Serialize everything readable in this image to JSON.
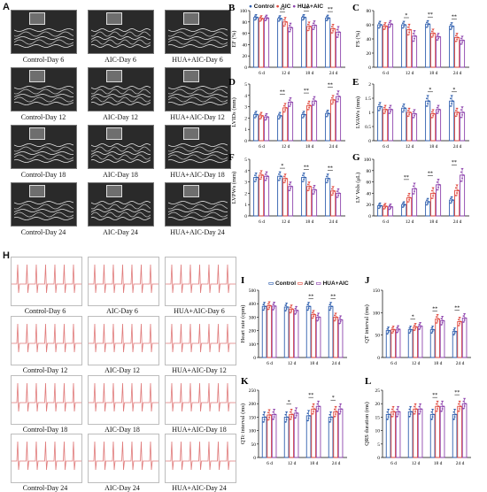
{
  "panel_letters": [
    "A",
    "B",
    "C",
    "D",
    "E",
    "F",
    "G",
    "H",
    "I",
    "J",
    "K",
    "L"
  ],
  "echo_labels": [
    "Control-Day 6",
    "AIC-Day 6",
    "HUA+AIC-Day 6",
    "Control-Day 12",
    "AIC-Day 12",
    "HUA+AIC-Day 12",
    "Control-Day 18",
    "AIC-Day 18",
    "HUA+AIC-Day 18",
    "Control-Day 24",
    "AIC-Day 24",
    "HUA+AIC-Day 24"
  ],
  "ecg_labels": [
    "Control-Day 6",
    "AIC-Day 6",
    "HUA+AIC-Day 6",
    "Control-Day 12",
    "AIC-Day 12",
    "HUA+AIC-Day 12",
    "Control-Day 18",
    "AIC-Day 18",
    "HUA+AIC-Day 18",
    "Control-Day 24",
    "AIC-Day 24",
    "HUA+AIC-Day 24"
  ],
  "legend_top": {
    "items": [
      "Control",
      "AIC",
      "HUA+AIC"
    ]
  },
  "legend_bottom": {
    "items": [
      "Control",
      "AIC",
      "HUA+AIC"
    ]
  },
  "colors": {
    "control": "#2f5fae",
    "aic": "#e0483d",
    "hua": "#8e44ad",
    "ecg": "#e07a7a"
  },
  "chart_data": [
    {
      "id": "B",
      "type": "bar",
      "ylabel": "EF (%)",
      "categories": [
        "6 d",
        "12 d",
        "18 d",
        "24 d"
      ],
      "ylim": [
        0,
        100
      ],
      "yticks": [
        0,
        20,
        40,
        60,
        80,
        100
      ],
      "series": [
        {
          "name": "Control",
          "values": [
            88,
            86,
            88,
            87
          ]
        },
        {
          "name": "AIC",
          "values": [
            86,
            80,
            72,
            68
          ]
        },
        {
          "name": "HUA+AIC",
          "values": [
            87,
            70,
            74,
            62
          ]
        }
      ],
      "errors": [
        [
          5,
          5,
          5,
          5
        ],
        [
          5,
          8,
          8,
          8
        ],
        [
          5,
          8,
          8,
          10
        ]
      ],
      "sig": [
        "",
        "**",
        "**",
        "**"
      ]
    },
    {
      "id": "C",
      "type": "bar",
      "ylabel": "FS (%)",
      "categories": [
        "6 d",
        "12 d",
        "18 d",
        "24 d"
      ],
      "ylim": [
        0,
        80
      ],
      "yticks": [
        0,
        20,
        40,
        60,
        80
      ],
      "series": [
        {
          "name": "Control",
          "values": [
            60,
            60,
            61,
            58
          ]
        },
        {
          "name": "AIC",
          "values": [
            58,
            53,
            48,
            42
          ]
        },
        {
          "name": "HUA+AIC",
          "values": [
            61,
            44,
            43,
            38
          ]
        }
      ],
      "errors": [
        [
          5,
          5,
          5,
          5
        ],
        [
          5,
          8,
          6,
          6
        ],
        [
          5,
          8,
          5,
          6
        ]
      ],
      "sig": [
        "",
        "*",
        "**",
        "**"
      ]
    },
    {
      "id": "D",
      "type": "bar",
      "ylabel": "LVIDs (mm)",
      "categories": [
        "6 d",
        "12 d",
        "18 d",
        "24 d"
      ],
      "ylim": [
        0,
        5
      ],
      "yticks": [
        0,
        1,
        2,
        3,
        4,
        5
      ],
      "series": [
        {
          "name": "Control",
          "values": [
            2.3,
            2.2,
            2.3,
            2.4
          ]
        },
        {
          "name": "AIC",
          "values": [
            2.2,
            2.9,
            3.1,
            3.6
          ]
        },
        {
          "name": "HUA+AIC",
          "values": [
            2.1,
            3.4,
            3.5,
            3.9
          ]
        }
      ],
      "errors": [
        [
          0.3,
          0.3,
          0.3,
          0.3
        ],
        [
          0.3,
          0.4,
          0.4,
          0.4
        ],
        [
          0.3,
          0.4,
          0.4,
          0.5
        ]
      ],
      "sig": [
        "",
        "**",
        "**",
        "**"
      ]
    },
    {
      "id": "E",
      "type": "bar",
      "ylabel": "LVAWs (mm)",
      "categories": [
        "6 d",
        "12 d",
        "18 d",
        "24 d"
      ],
      "ylim": [
        0,
        2.0
      ],
      "yticks": [
        0,
        0.5,
        1.0,
        1.5,
        2.0
      ],
      "series": [
        {
          "name": "Control",
          "values": [
            1.2,
            1.15,
            1.4,
            1.4
          ]
        },
        {
          "name": "AIC",
          "values": [
            1.1,
            1.0,
            0.95,
            1.0
          ]
        },
        {
          "name": "HUA+AIC",
          "values": [
            1.1,
            0.95,
            1.1,
            1.0
          ]
        }
      ],
      "errors": [
        [
          0.15,
          0.15,
          0.2,
          0.2
        ],
        [
          0.15,
          0.15,
          0.15,
          0.15
        ],
        [
          0.15,
          0.15,
          0.15,
          0.2
        ]
      ],
      "sig": [
        "",
        "",
        "*",
        "*"
      ]
    },
    {
      "id": "F",
      "type": "bar",
      "ylabel": "LVPWs (mm)",
      "categories": [
        "6 d",
        "12 d",
        "18 d",
        "24 d"
      ],
      "ylim": [
        0,
        5
      ],
      "yticks": [
        0,
        1,
        2,
        3,
        4,
        5
      ],
      "series": [
        {
          "name": "Control",
          "values": [
            3.4,
            3.5,
            3.4,
            3.3
          ]
        },
        {
          "name": "AIC",
          "values": [
            3.6,
            3.3,
            2.6,
            2.2
          ]
        },
        {
          "name": "HUA+AIC",
          "values": [
            3.5,
            2.6,
            2.3,
            2.0
          ]
        }
      ],
      "errors": [
        [
          0.4,
          0.4,
          0.4,
          0.4
        ],
        [
          0.4,
          0.4,
          0.4,
          0.4
        ],
        [
          0.4,
          0.4,
          0.4,
          0.4
        ]
      ],
      "sig": [
        "",
        "*",
        "**",
        "**"
      ]
    },
    {
      "id": "G",
      "type": "bar",
      "ylabel": "LV Vols (μL)",
      "categories": [
        "6 d",
        "12 d",
        "18 d",
        "24 d"
      ],
      "ylim": [
        0,
        100
      ],
      "yticks": [
        0,
        20,
        40,
        60,
        80,
        100
      ],
      "series": [
        {
          "name": "Control",
          "values": [
            18,
            20,
            25,
            28
          ]
        },
        {
          "name": "AIC",
          "values": [
            17,
            32,
            40,
            45
          ]
        },
        {
          "name": "HUA+AIC",
          "values": [
            16,
            48,
            55,
            72
          ]
        }
      ],
      "errors": [
        [
          5,
          5,
          6,
          6
        ],
        [
          5,
          8,
          10,
          10
        ],
        [
          5,
          10,
          10,
          12
        ]
      ],
      "sig": [
        "",
        "**",
        "**",
        "**"
      ]
    },
    {
      "id": "I",
      "type": "bar",
      "ylabel": "Heart rate (cpm)",
      "categories": [
        "6 d",
        "12 d",
        "18 d",
        "24 d"
      ],
      "ylim": [
        0,
        500
      ],
      "yticks": [
        0,
        100,
        200,
        300,
        400,
        500
      ],
      "series": [
        {
          "name": "Control",
          "values": [
            380,
            375,
            380,
            380
          ]
        },
        {
          "name": "AIC",
          "values": [
            385,
            360,
            320,
            300
          ]
        },
        {
          "name": "HUA+AIC",
          "values": [
            382,
            350,
            300,
            280
          ]
        }
      ],
      "errors": [
        [
          30,
          30,
          30,
          30
        ],
        [
          30,
          30,
          30,
          30
        ],
        [
          30,
          30,
          30,
          30
        ]
      ],
      "sig": [
        "",
        "",
        "**",
        "**"
      ]
    },
    {
      "id": "J",
      "type": "bar",
      "ylabel": "QT interval (ms)",
      "categories": [
        "6 d",
        "12 d",
        "18 d",
        "24 d"
      ],
      "ylim": [
        0,
        150
      ],
      "yticks": [
        0,
        50,
        100,
        150
      ],
      "series": [
        {
          "name": "Control",
          "values": [
            60,
            62,
            62,
            58
          ]
        },
        {
          "name": "AIC",
          "values": [
            62,
            68,
            86,
            80
          ]
        },
        {
          "name": "HUA+AIC",
          "values": [
            63,
            70,
            82,
            88
          ]
        }
      ],
      "errors": [
        [
          8,
          8,
          8,
          8
        ],
        [
          8,
          8,
          10,
          10
        ],
        [
          8,
          8,
          10,
          10
        ]
      ],
      "sig": [
        "",
        "*",
        "**",
        "**"
      ]
    },
    {
      "id": "K",
      "type": "bar",
      "ylabel": "QTc interval (ms)",
      "categories": [
        "6 d",
        "12 d",
        "18 d",
        "24 d"
      ],
      "ylim": [
        0,
        250
      ],
      "yticks": [
        0,
        50,
        100,
        150,
        200,
        250
      ],
      "series": [
        {
          "name": "Control",
          "values": [
            150,
            150,
            155,
            150
          ]
        },
        {
          "name": "AIC",
          "values": [
            158,
            160,
            180,
            170
          ]
        },
        {
          "name": "HUA+AIC",
          "values": [
            160,
            165,
            190,
            180
          ]
        }
      ],
      "errors": [
        [
          20,
          20,
          20,
          20
        ],
        [
          20,
          20,
          20,
          20
        ],
        [
          20,
          20,
          20,
          20
        ]
      ],
      "sig": [
        "",
        "*",
        "**",
        "*"
      ]
    },
    {
      "id": "L",
      "type": "bar",
      "ylabel": "QRS duration (ms)",
      "categories": [
        "6 d",
        "12 d",
        "18 d",
        "24 d"
      ],
      "ylim": [
        0,
        25
      ],
      "yticks": [
        0,
        5,
        10,
        15,
        20,
        25
      ],
      "series": [
        {
          "name": "Control",
          "values": [
            16,
            17,
            16,
            16
          ]
        },
        {
          "name": "AIC",
          "values": [
            17,
            18,
            19,
            19
          ]
        },
        {
          "name": "HUA+AIC",
          "values": [
            17,
            18,
            19,
            20
          ]
        }
      ],
      "errors": [
        [
          2,
          2,
          2,
          2
        ],
        [
          2,
          2,
          2,
          2
        ],
        [
          2,
          2,
          2,
          2
        ]
      ],
      "sig": [
        "",
        "",
        "**",
        "**"
      ]
    }
  ]
}
